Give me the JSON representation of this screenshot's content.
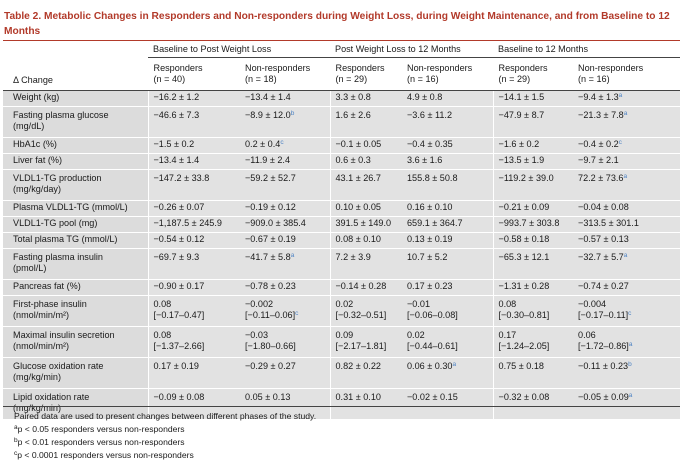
{
  "title": "Table 2.  Metabolic Changes in Responders and Non-responders during Weight Loss, during Weight Maintenance, and from Baseline to 12 Months",
  "group_headers": [
    "Baseline to Post Weight Loss",
    "Post Weight Loss to 12 Months",
    "Baseline to 12 Months"
  ],
  "change_label": "Δ Change",
  "sub_headers": [
    [
      "Responders",
      "(n = 40)"
    ],
    [
      "Non-responders",
      "(n = 18)"
    ],
    [
      "Responders",
      "(n = 29)"
    ],
    [
      "Non-responders",
      "(n = 16)"
    ],
    [
      "Responders",
      "(n = 29)"
    ],
    [
      "Non-responders",
      "(n = 16)"
    ]
  ],
  "rows": [
    {
      "label": [
        "Weight (kg)"
      ],
      "cells": [
        [
          "−16.2 ± 1.2",
          ""
        ],
        [
          "−13.4 ± 1.4",
          ""
        ],
        [
          "3.3 ± 0.8",
          ""
        ],
        [
          "4.9 ± 0.8",
          ""
        ],
        [
          "−14.1 ± 1.5",
          ""
        ],
        [
          "−9.4 ± 1.3",
          "a"
        ]
      ]
    },
    {
      "label": [
        "Fasting plasma glucose",
        "(mg/dL)"
      ],
      "cells": [
        [
          "−46.6 ± 7.3",
          ""
        ],
        [
          "−8.9 ± 12.0",
          "b"
        ],
        [
          "1.6 ± 2.6",
          ""
        ],
        [
          "−3.6 ± 11.2",
          ""
        ],
        [
          "−47.9 ± 8.7",
          ""
        ],
        [
          "−21.3 ± 7.8",
          "a"
        ]
      ]
    },
    {
      "label": [
        "HbA1c (%)"
      ],
      "cells": [
        [
          "−1.5 ± 0.2",
          ""
        ],
        [
          "0.2 ± 0.4",
          "c"
        ],
        [
          "−0.1 ± 0.05",
          ""
        ],
        [
          "−0.4 ± 0.35",
          ""
        ],
        [
          "−1.6 ± 0.2",
          ""
        ],
        [
          "−0.4 ± 0.2",
          "c"
        ]
      ]
    },
    {
      "label": [
        "Liver fat (%)"
      ],
      "cells": [
        [
          "−13.4 ± 1.4",
          ""
        ],
        [
          "−11.9 ± 2.4",
          ""
        ],
        [
          "0.6 ± 0.3",
          ""
        ],
        [
          "3.6 ± 1.6",
          ""
        ],
        [
          "−13.5 ± 1.9",
          ""
        ],
        [
          "−9.7 ± 2.1",
          ""
        ]
      ]
    },
    {
      "label": [
        "VLDL1-TG production",
        "(mg/kg/day)"
      ],
      "cells": [
        [
          "−147.2 ± 33.8",
          ""
        ],
        [
          "−59.2 ± 52.7",
          ""
        ],
        [
          "43.1 ± 26.7",
          ""
        ],
        [
          "155.8 ± 50.8",
          ""
        ],
        [
          "−119.2 ± 39.0",
          ""
        ],
        [
          "72.2 ± 73.6",
          "a"
        ]
      ]
    },
    {
      "label": [
        "Plasma VLDL1-TG (mmol/L)"
      ],
      "cells": [
        [
          "−0.26 ± 0.07",
          ""
        ],
        [
          "−0.19 ± 0.12",
          ""
        ],
        [
          "0.10 ± 0.05",
          ""
        ],
        [
          "0.16 ± 0.10",
          ""
        ],
        [
          "−0.21 ± 0.09",
          ""
        ],
        [
          "−0.04 ± 0.08",
          ""
        ]
      ]
    },
    {
      "label": [
        "VLDL1-TG pool (mg)"
      ],
      "cells": [
        [
          "−1,187.5 ± 245.9",
          ""
        ],
        [
          "−909.0 ± 385.4",
          ""
        ],
        [
          "391.5 ± 149.0",
          ""
        ],
        [
          "659.1 ± 364.7",
          ""
        ],
        [
          "−993.7 ± 303.8",
          ""
        ],
        [
          "−313.5 ± 301.1",
          ""
        ]
      ]
    },
    {
      "label": [
        "Total plasma TG (mmol/L)"
      ],
      "cells": [
        [
          "−0.54 ± 0.12",
          ""
        ],
        [
          "−0.67 ± 0.19",
          ""
        ],
        [
          "0.08 ± 0.10",
          ""
        ],
        [
          "0.13 ± 0.19",
          ""
        ],
        [
          "−0.58 ± 0.18",
          ""
        ],
        [
          "−0.57 ± 0.13",
          ""
        ]
      ]
    },
    {
      "label": [
        "Fasting plasma insulin",
        "(pmol/L)"
      ],
      "cells": [
        [
          "−69.7 ± 9.3",
          ""
        ],
        [
          "−41.7 ± 5.8",
          "a"
        ],
        [
          "7.2 ± 3.9",
          ""
        ],
        [
          "10.7 ± 5.2",
          ""
        ],
        [
          "−65.3 ± 12.1",
          ""
        ],
        [
          "−32.7 ± 5.7",
          "a"
        ]
      ]
    },
    {
      "label": [
        "Pancreas fat (%)"
      ],
      "cells": [
        [
          "−0.90 ± 0.17",
          ""
        ],
        [
          "−0.78 ± 0.23",
          ""
        ],
        [
          "−0.14 ± 0.28",
          ""
        ],
        [
          "0.17 ± 0.23",
          ""
        ],
        [
          "−1.31 ± 0.28",
          ""
        ],
        [
          "−0.74 ± 0.27",
          ""
        ]
      ]
    },
    {
      "label": [
        "First-phase insulin",
        "(nmol/min/m²)"
      ],
      "cells": [
        [
          "0.08",
          "",
          "[−0.17–0.47]",
          ""
        ],
        [
          "−0.002",
          "",
          "[−0.11–0.06]",
          "c"
        ],
        [
          "0.02",
          "",
          "[−0.32–0.51]",
          ""
        ],
        [
          "−0.01",
          "",
          "[−0.06–0.08]",
          ""
        ],
        [
          "0.08",
          "",
          "[−0.30–0.81]",
          ""
        ],
        [
          "−0.004",
          "",
          "[−0.17–0.11]",
          "c"
        ]
      ]
    },
    {
      "label": [
        "Maximal insulin secretion",
        "(nmol/min/m²)"
      ],
      "cells": [
        [
          "0.08",
          "",
          "[−1.37–2.66]",
          ""
        ],
        [
          "−0.03",
          "",
          "[−1.80–0.66]",
          ""
        ],
        [
          "0.09",
          "",
          "[−2.17–1.81]",
          ""
        ],
        [
          "0.02",
          "",
          "[−0.44–0.61]",
          ""
        ],
        [
          "0.17",
          "",
          "[−1.24–2.05]",
          ""
        ],
        [
          "0.06",
          "",
          "[−1.72–0.86]",
          "a"
        ]
      ]
    },
    {
      "label": [
        "Glucose oxidation rate",
        "(mg/kg/min)"
      ],
      "cells": [
        [
          "0.17 ± 0.19",
          ""
        ],
        [
          "−0.29 ± 0.27",
          ""
        ],
        [
          "0.82 ± 0.22",
          ""
        ],
        [
          "0.06 ± 0.30",
          "a"
        ],
        [
          "0.75 ± 0.18",
          ""
        ],
        [
          "−0.11 ± 0.23",
          "b"
        ]
      ]
    },
    {
      "label": [
        "Lipid oxidation rate",
        "(mg/kg/min)"
      ],
      "cells": [
        [
          "−0.09 ± 0.08",
          ""
        ],
        [
          "0.05 ± 0.13",
          ""
        ],
        [
          "0.31 ± 0.10",
          ""
        ],
        [
          "−0.02 ± 0.15",
          ""
        ],
        [
          "−0.32 ± 0.08",
          ""
        ],
        [
          "−0.05 ± 0.09",
          "a"
        ]
      ]
    }
  ],
  "footnotes": [
    {
      "sup": "",
      "text": "Paired data are used to present changes between different phases of the study."
    },
    {
      "sup": "a",
      "text": "p < 0.05 responders versus non-responders"
    },
    {
      "sup": "b",
      "text": "p < 0.01 responders versus non-responders"
    },
    {
      "sup": "c",
      "text": "p < 0.0001 responders versus non-responders"
    }
  ],
  "colors": {
    "accent": "#b23a2a",
    "superscript": "#4f84c4",
    "shading": "#e2e2e2"
  }
}
